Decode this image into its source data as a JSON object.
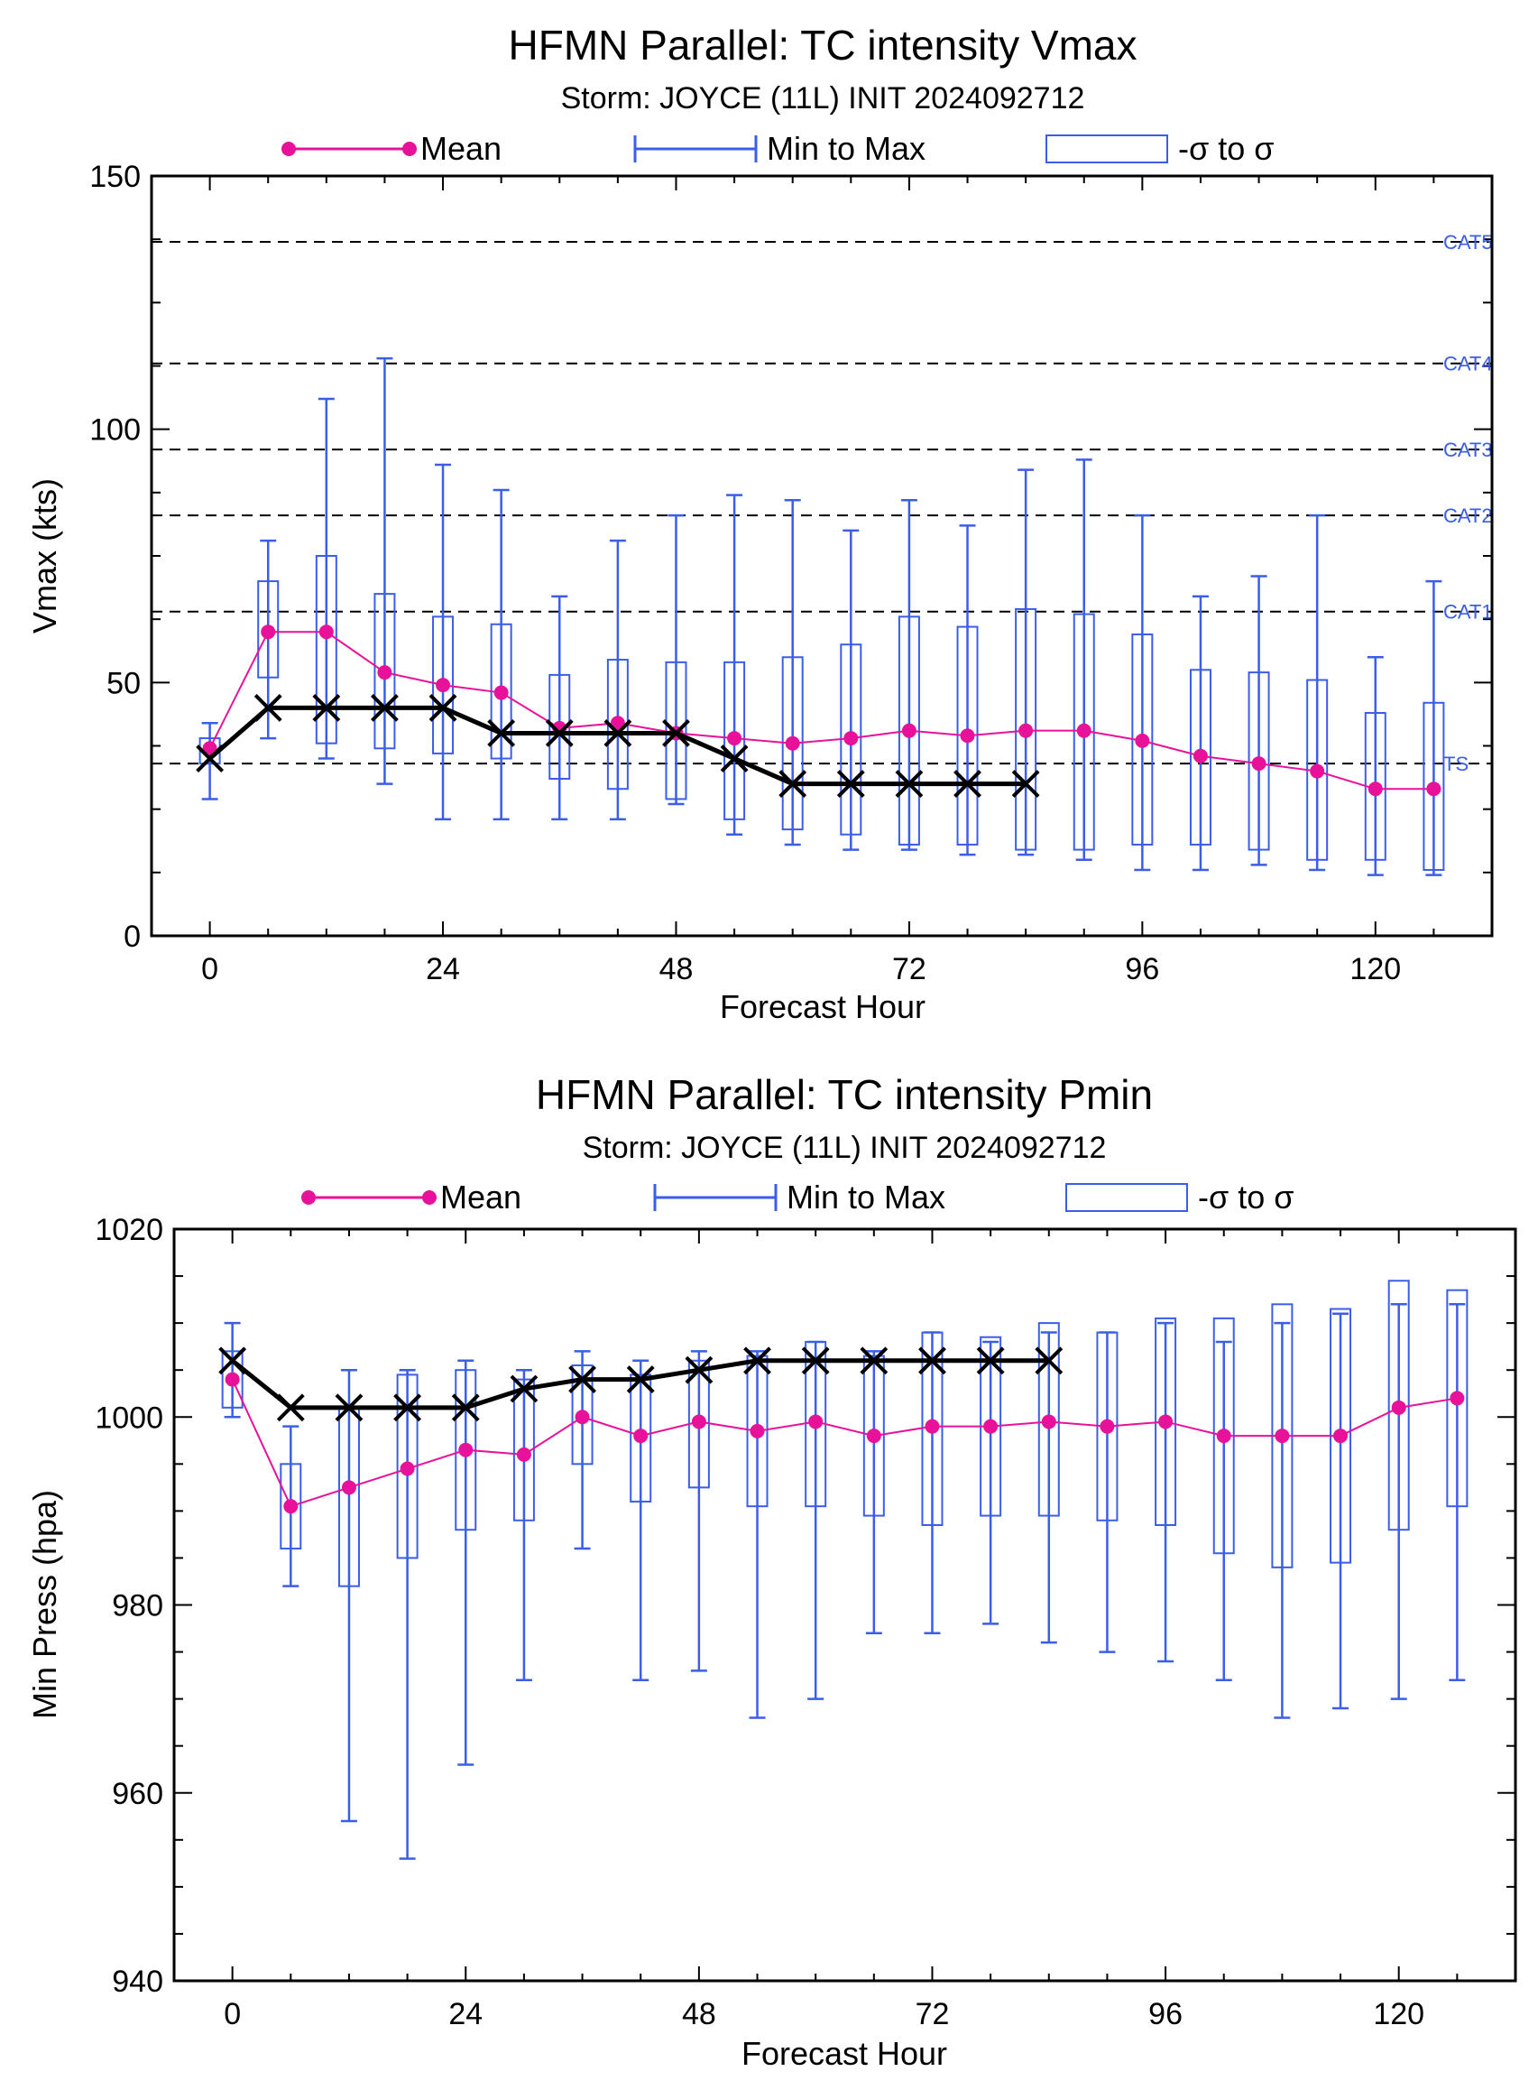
{
  "colors": {
    "mean": "#e8129a",
    "minmax": "#3b5ee8",
    "box": "#3b5ee8",
    "observed": "#000000",
    "category_line": "#000000",
    "category_label": "#3b5ee8"
  },
  "chart_data": [
    {
      "type": "box",
      "title": "HFMN Parallel: TC intensity Vmax",
      "subtitle": "Storm: JOYCE (11L) INIT 2024092712",
      "xlabel": "Forecast Hour",
      "ylabel": "Vmax (kts)",
      "xlim": [
        -6,
        132
      ],
      "ylim": [
        0,
        150
      ],
      "xticks": [
        0,
        24,
        48,
        72,
        96,
        120
      ],
      "yticks": [
        0,
        50,
        100,
        150
      ],
      "legend": {
        "placement": "top",
        "items": [
          {
            "label": "Mean",
            "symbol": "mean-line"
          },
          {
            "label": "Min to Max",
            "symbol": "minmax-bar"
          },
          {
            "label": "-σ to σ",
            "symbol": "sigma-box"
          }
        ]
      },
      "category_lines": [
        {
          "label": "TS",
          "value": 34
        },
        {
          "label": "CAT1",
          "value": 64
        },
        {
          "label": "CAT2",
          "value": 83
        },
        {
          "label": "CAT3",
          "value": 96
        },
        {
          "label": "CAT4",
          "value": 113
        },
        {
          "label": "CAT5",
          "value": 137
        }
      ],
      "x": [
        0,
        6,
        12,
        18,
        24,
        30,
        36,
        42,
        48,
        54,
        60,
        66,
        72,
        78,
        84,
        90,
        96,
        102,
        108,
        114,
        120,
        126
      ],
      "mean": [
        37,
        60,
        60,
        52,
        49.5,
        48,
        41,
        42,
        40,
        39,
        38,
        39,
        40.5,
        39.5,
        40.5,
        40.5,
        38.5,
        35.5,
        34,
        32.5,
        29,
        29
      ],
      "min": [
        27,
        39,
        35,
        30,
        23,
        23,
        23,
        23,
        26,
        20,
        18,
        17,
        17,
        16,
        16,
        15,
        13,
        13,
        14,
        13,
        12,
        12
      ],
      "max": [
        42,
        78,
        106,
        114,
        93,
        88,
        67,
        78,
        83,
        87,
        86,
        80,
        86,
        81,
        92,
        94,
        83,
        67,
        71,
        83,
        55,
        70
      ],
      "sigma_low": [
        34,
        51,
        38,
        37,
        36,
        35,
        31,
        29,
        27,
        23,
        21,
        20,
        18,
        18,
        17,
        17,
        18,
        18,
        17,
        15,
        15,
        13
      ],
      "sigma_high": [
        39,
        70,
        75,
        67.5,
        63,
        61.5,
        51.5,
        54.5,
        54,
        54,
        55,
        57.5,
        63,
        61,
        64.5,
        63.5,
        59.5,
        52.5,
        52,
        50.5,
        44,
        46
      ],
      "observed_x": [
        0,
        6,
        12,
        18,
        24,
        30,
        36,
        42,
        48,
        54,
        60,
        66,
        72,
        78,
        84
      ],
      "observed": [
        35,
        45,
        45,
        45,
        45,
        40,
        40,
        40,
        40,
        35,
        30,
        30,
        30,
        30,
        30
      ]
    },
    {
      "type": "box",
      "title": "HFMN Parallel: TC intensity Pmin",
      "subtitle": "Storm: JOYCE (11L) INIT 2024092712",
      "xlabel": "Forecast Hour",
      "ylabel": "Min Press (hpa)",
      "xlim": [
        -6,
        132
      ],
      "ylim": [
        940,
        1020
      ],
      "xticks": [
        0,
        24,
        48,
        72,
        96,
        120
      ],
      "yticks": [
        940,
        960,
        980,
        1000,
        1020
      ],
      "legend": {
        "placement": "top",
        "items": [
          {
            "label": "Mean",
            "symbol": "mean-line"
          },
          {
            "label": "Min to Max",
            "symbol": "minmax-bar"
          },
          {
            "label": "-σ to σ",
            "symbol": "sigma-box"
          }
        ]
      },
      "x": [
        0,
        6,
        12,
        18,
        24,
        30,
        36,
        42,
        48,
        54,
        60,
        66,
        72,
        78,
        84,
        90,
        96,
        102,
        108,
        114,
        120,
        126
      ],
      "mean": [
        1004,
        990.5,
        992.5,
        994.5,
        996.5,
        996,
        1000,
        998,
        999.5,
        998.5,
        999.5,
        998,
        999,
        999,
        999.5,
        999,
        999.5,
        998,
        998,
        998,
        1001,
        1002
      ],
      "min": [
        1000,
        982,
        957,
        953,
        963,
        972,
        986,
        972,
        973,
        968,
        970,
        977,
        977,
        978,
        976,
        975,
        974,
        972,
        968,
        969,
        970,
        972
      ],
      "max": [
        1010,
        999,
        1005,
        1005,
        1006,
        1005,
        1007,
        1006,
        1007,
        1007,
        1008,
        1007,
        1009,
        1008,
        1009,
        1009,
        1010,
        1008,
        1010,
        1011,
        1012,
        1012
      ],
      "sigma_low": [
        1001,
        986,
        982,
        985,
        988,
        989,
        995,
        991,
        992.5,
        990.5,
        990.5,
        989.5,
        988.5,
        989.5,
        989.5,
        989,
        988.5,
        985.5,
        984,
        984.5,
        988,
        990.5
      ],
      "sigma_high": [
        1007,
        995,
        1001,
        1004.5,
        1005,
        1004,
        1005.5,
        1004.5,
        1006,
        1006.5,
        1008,
        1006.5,
        1009,
        1008.5,
        1010,
        1009,
        1010.5,
        1010.5,
        1012,
        1011.5,
        1014.5,
        1013.5
      ],
      "observed_x": [
        0,
        6,
        12,
        18,
        24,
        30,
        36,
        42,
        48,
        54,
        60,
        66,
        72,
        78,
        84
      ],
      "observed": [
        1006,
        1001,
        1001,
        1001,
        1001,
        1003,
        1004,
        1004,
        1005,
        1006,
        1006,
        1006,
        1006,
        1006,
        1006
      ]
    }
  ]
}
